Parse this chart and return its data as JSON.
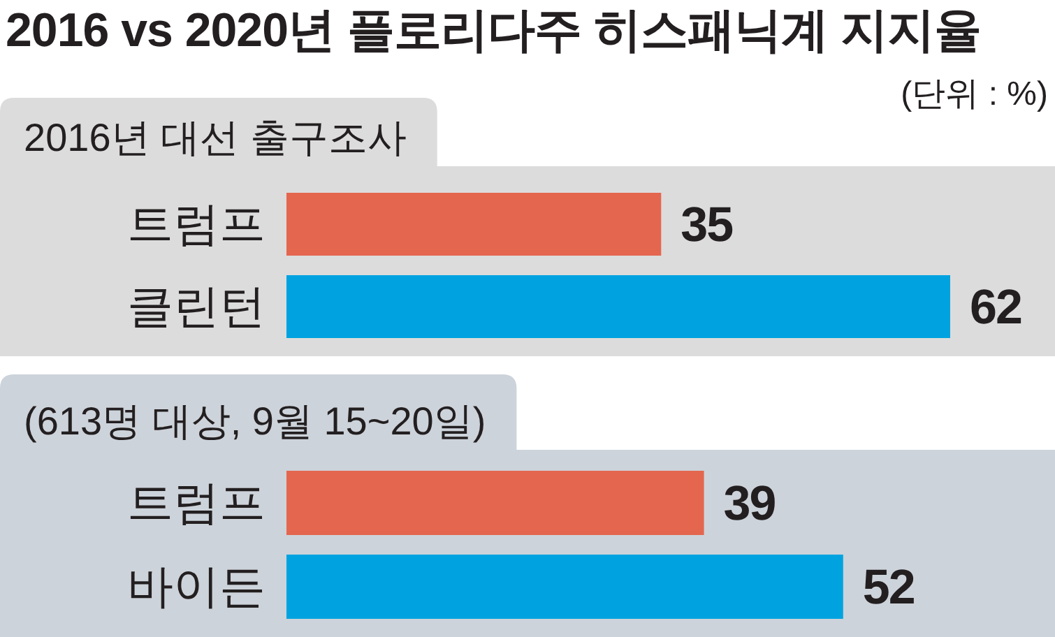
{
  "chart_data": [
    {
      "type": "bar",
      "orientation": "horizontal",
      "title": "2016 vs 2020년 플로리다주 히스패닉계 지지율",
      "subtitle": "2016년 대선 출구조사",
      "annotations": [
        "(단위 : %)"
      ],
      "categories": [
        "트럼프",
        "클린턴"
      ],
      "values": [
        35,
        62
      ],
      "colors": [
        "#e4664f",
        "#00a3e0"
      ],
      "data_labels": true
    },
    {
      "type": "bar",
      "orientation": "horizontal",
      "subtitle": "(613명 대상, 9월 15~20일)",
      "categories": [
        "트럼프",
        "바이든"
      ],
      "values": [
        39,
        52
      ],
      "colors": [
        "#e4664f",
        "#00a3e0"
      ],
      "data_labels": true
    }
  ]
}
